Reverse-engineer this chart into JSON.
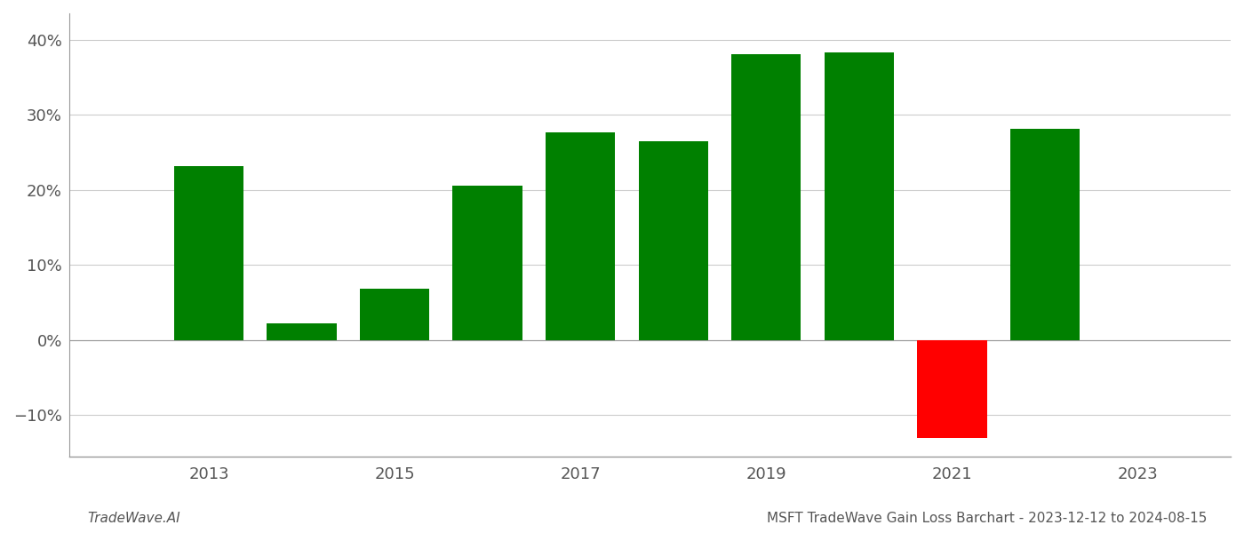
{
  "years": [
    2013,
    2014,
    2015,
    2016,
    2017,
    2018,
    2019,
    2020,
    2021,
    2022
  ],
  "values": [
    0.232,
    0.022,
    0.068,
    0.206,
    0.277,
    0.265,
    0.381,
    0.383,
    -0.13,
    0.281
  ],
  "bar_colors_positive": "#008000",
  "bar_colors_negative": "#ff0000",
  "title": "MSFT TradeWave Gain Loss Barchart - 2023-12-12 to 2024-08-15",
  "watermark": "TradeWave.AI",
  "ylim": [
    -0.155,
    0.435
  ],
  "yticks": [
    -0.1,
    0.0,
    0.1,
    0.2,
    0.3,
    0.4
  ],
  "xticks": [
    2013,
    2015,
    2017,
    2019,
    2021,
    2023
  ],
  "bar_width": 0.75,
  "xlim": [
    2011.5,
    2024.0
  ],
  "background_color": "#ffffff",
  "grid_color": "#cccccc",
  "title_fontsize": 11,
  "watermark_fontsize": 11,
  "tick_fontsize": 13,
  "spine_color": "#999999"
}
